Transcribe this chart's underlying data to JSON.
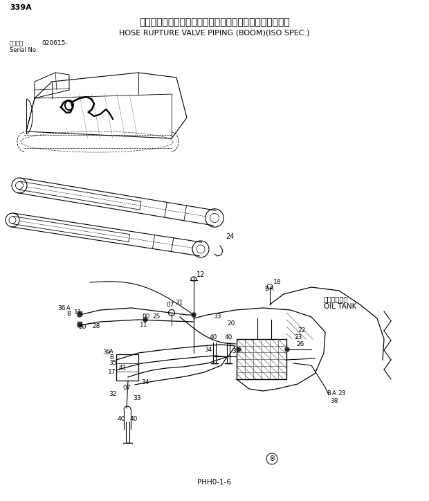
{
  "page_num": "339A",
  "title_jp": "ホースラプチャーバルブ配管（ブーム）　（ＩＳＯ仕様）",
  "title_en": "HOSE RUPTURE VALVE PIPING (BOOM)(ISO SPEC.)",
  "serial_label": "通用号機",
  "serial_num": "020615-",
  "serial_no": "Serial No.",
  "page_code": "PHH0-1-6",
  "bg_color": "#ffffff",
  "text_color": "#000000"
}
